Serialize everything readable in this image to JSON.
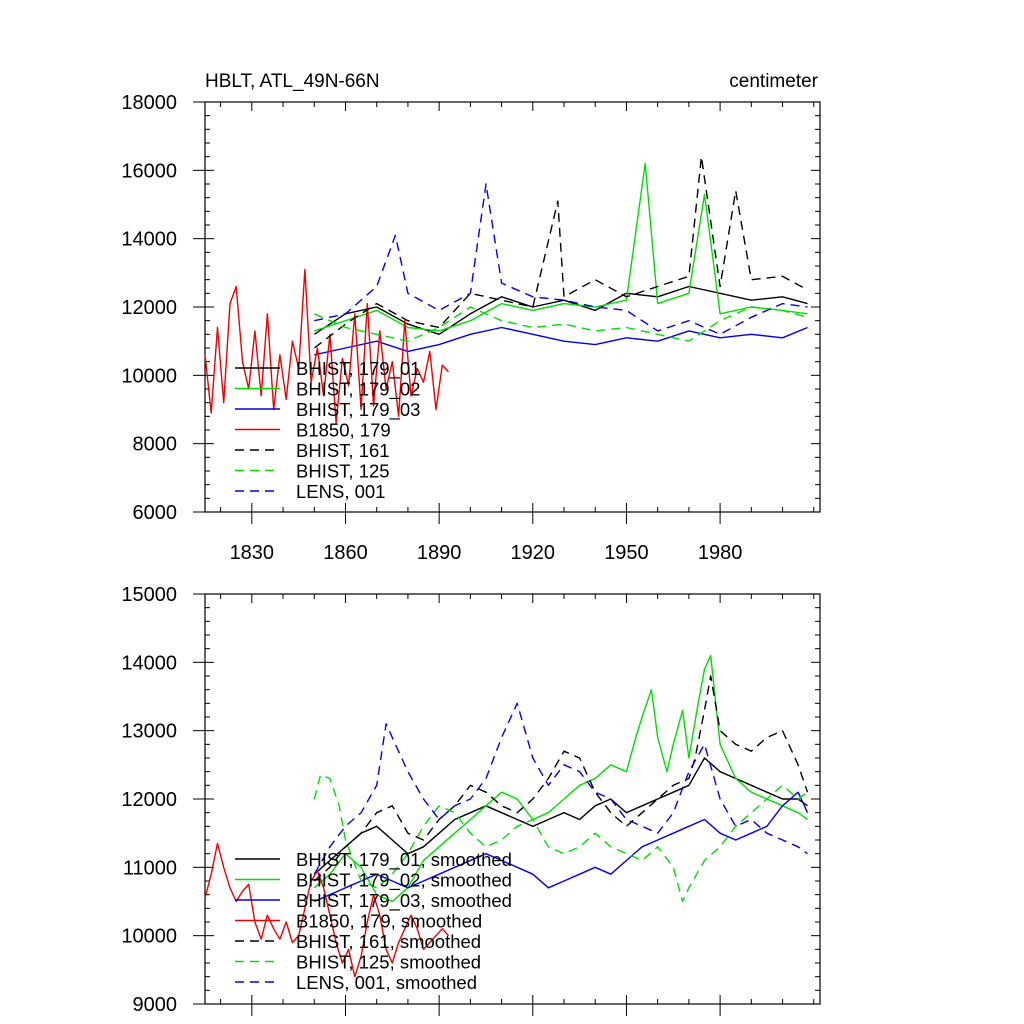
{
  "chart_data": [
    {
      "type": "line",
      "title": "HBLT, ATL_49N-66N",
      "units": "centimeter",
      "xlabel": "",
      "ylabel": "",
      "xlim": [
        1815,
        2012
      ],
      "ylim": [
        6000,
        18000
      ],
      "xticks": [
        1830,
        1860,
        1890,
        1920,
        1950,
        1980
      ],
      "xtick_labels": [
        "1830",
        "1860",
        "1890",
        "1920",
        "1950",
        "1980"
      ],
      "yticks": [
        6000,
        8000,
        10000,
        12000,
        14000,
        16000,
        18000
      ],
      "ytick_labels": [
        "6000",
        "8000",
        "10000",
        "12000",
        "14000",
        "16000",
        "18000"
      ],
      "legend_position": "lower-left",
      "series": [
        {
          "name": "BHIST, 179_01",
          "color": "#000000",
          "dash": "solid",
          "x": [
            1850,
            1860,
            1870,
            1880,
            1890,
            1900,
            1910,
            1920,
            1930,
            1940,
            1950,
            1960,
            1970,
            1980,
            1990,
            2000,
            2008
          ],
          "y": [
            11200,
            11800,
            12000,
            11500,
            11200,
            11800,
            12300,
            12000,
            12200,
            11900,
            12400,
            12300,
            12600,
            12400,
            12200,
            12300,
            12100
          ]
        },
        {
          "name": "BHIST, 179_02",
          "color": "#00dd00",
          "dash": "solid",
          "x": [
            1850,
            1860,
            1870,
            1880,
            1890,
            1900,
            1910,
            1920,
            1930,
            1940,
            1950,
            1956,
            1960,
            1970,
            1975,
            1980,
            1990,
            2000,
            2008
          ],
          "y": [
            11300,
            11600,
            11900,
            11400,
            11300,
            11600,
            12100,
            11900,
            12100,
            12000,
            12200,
            16200,
            12100,
            12400,
            15300,
            11800,
            12000,
            11900,
            11800
          ]
        },
        {
          "name": "BHIST, 179_03",
          "color": "#0000ee",
          "dash": "solid",
          "x": [
            1850,
            1860,
            1870,
            1880,
            1890,
            1900,
            1910,
            1920,
            1930,
            1940,
            1950,
            1960,
            1970,
            1980,
            1990,
            2000,
            2008
          ],
          "y": [
            10600,
            10800,
            11000,
            10700,
            10900,
            11200,
            11400,
            11200,
            11000,
            10900,
            11100,
            11000,
            11300,
            11100,
            11200,
            11100,
            11400
          ]
        },
        {
          "name": "B1850, 179",
          "color": "#ee0000",
          "dash": "solid",
          "x": [
            1815,
            1817,
            1819,
            1821,
            1823,
            1825,
            1827,
            1829,
            1831,
            1833,
            1835,
            1837,
            1839,
            1841,
            1843,
            1845,
            1847,
            1849,
            1851,
            1853,
            1855,
            1857,
            1859,
            1861,
            1863,
            1865,
            1867,
            1869,
            1871,
            1873,
            1875,
            1877,
            1879,
            1881,
            1883,
            1885,
            1887,
            1889,
            1891,
            1893
          ],
          "y": [
            10600,
            8900,
            11400,
            9200,
            12100,
            12600,
            10400,
            9600,
            11300,
            9400,
            11800,
            9000,
            10600,
            9300,
            11000,
            10200,
            13100,
            9800,
            10800,
            9400,
            11200,
            8600,
            10500,
            9700,
            11800,
            9000,
            12100,
            9100,
            11300,
            9600,
            10400,
            8800,
            11600,
            9400,
            10200,
            9800,
            10700,
            9000,
            10300,
            10100
          ]
        },
        {
          "name": "BHIST, 161",
          "color": "#000000",
          "dash": "dashed",
          "x": [
            1850,
            1860,
            1870,
            1880,
            1890,
            1900,
            1910,
            1920,
            1928,
            1930,
            1940,
            1950,
            1960,
            1970,
            1974,
            1980,
            1985,
            1990,
            2000,
            2008
          ],
          "y": [
            10800,
            11500,
            12100,
            11600,
            11400,
            12400,
            12200,
            12000,
            15100,
            12300,
            12800,
            12300,
            12600,
            12900,
            16400,
            12600,
            15400,
            12800,
            12900,
            12500
          ]
        },
        {
          "name": "BHIST, 125",
          "color": "#00dd00",
          "dash": "dashed",
          "x": [
            1850,
            1860,
            1870,
            1880,
            1890,
            1900,
            1910,
            1920,
            1930,
            1940,
            1950,
            1960,
            1970,
            1980,
            1990,
            2000,
            2008
          ],
          "y": [
            11800,
            11400,
            11200,
            11000,
            11400,
            12000,
            11600,
            11400,
            11500,
            11300,
            11400,
            11200,
            11000,
            11600,
            12000,
            11900,
            11700
          ]
        },
        {
          "name": "LENS, 001",
          "color": "#0000ee",
          "dash": "dashed",
          "x": [
            1850,
            1860,
            1870,
            1876,
            1880,
            1890,
            1900,
            1905,
            1910,
            1920,
            1930,
            1940,
            1950,
            1960,
            1970,
            1980,
            1990,
            2000,
            2008
          ],
          "y": [
            11600,
            11800,
            12600,
            14100,
            12400,
            11900,
            12400,
            15600,
            12700,
            12300,
            12200,
            12000,
            11900,
            11300,
            11600,
            11200,
            11700,
            12100,
            12000
          ]
        }
      ]
    },
    {
      "type": "line",
      "title": "",
      "units": "",
      "xlabel": "",
      "ylabel": "",
      "xlim": [
        1815,
        2012
      ],
      "ylim": [
        9000,
        15000
      ],
      "xticks": [
        1830,
        1860,
        1890,
        1920,
        1950,
        1980
      ],
      "xtick_labels": [],
      "yticks": [
        9000,
        10000,
        11000,
        12000,
        13000,
        14000,
        15000
      ],
      "ytick_labels": [
        "9000",
        "10000",
        "11000",
        "12000",
        "13000",
        "14000",
        "15000"
      ],
      "legend_position": "lower-left",
      "series": [
        {
          "name": "BHIST, 179_01, smoothed",
          "color": "#000000",
          "dash": "solid",
          "x": [
            1850,
            1855,
            1860,
            1865,
            1870,
            1875,
            1880,
            1885,
            1890,
            1895,
            1900,
            1905,
            1910,
            1915,
            1920,
            1925,
            1930,
            1935,
            1940,
            1945,
            1950,
            1955,
            1960,
            1965,
            1970,
            1975,
            1980,
            1985,
            1990,
            1995,
            2000,
            2005,
            2008
          ],
          "y": [
            10900,
            11100,
            11300,
            11500,
            11600,
            11400,
            11200,
            11300,
            11500,
            11700,
            11800,
            11900,
            11800,
            11700,
            11600,
            11700,
            11800,
            11700,
            11900,
            12000,
            11800,
            11900,
            12000,
            12100,
            12200,
            12600,
            12400,
            12300,
            12200,
            12100,
            12000,
            12000,
            11900
          ]
        },
        {
          "name": "BHIST, 179_02, smoothed",
          "color": "#00dd00",
          "dash": "solid",
          "x": [
            1850,
            1855,
            1860,
            1865,
            1870,
            1875,
            1880,
            1885,
            1890,
            1895,
            1900,
            1905,
            1910,
            1915,
            1920,
            1925,
            1930,
            1935,
            1940,
            1945,
            1950,
            1953,
            1955,
            1958,
            1960,
            1963,
            1965,
            1968,
            1970,
            1973,
            1975,
            1977,
            1980,
            1985,
            1990,
            1995,
            2000,
            2005,
            2008
          ],
          "y": [
            10700,
            10900,
            11200,
            11000,
            10600,
            10500,
            10700,
            11100,
            11300,
            11500,
            11700,
            11900,
            12100,
            12000,
            11700,
            11800,
            12000,
            12200,
            12300,
            12500,
            12400,
            12900,
            13200,
            13600,
            12900,
            12400,
            12800,
            13300,
            12600,
            13400,
            13900,
            14100,
            12800,
            12300,
            12100,
            12000,
            11900,
            11800,
            11700
          ]
        },
        {
          "name": "BHIST, 179_03, smoothed",
          "color": "#0000ee",
          "dash": "solid",
          "x": [
            1850,
            1855,
            1860,
            1865,
            1870,
            1875,
            1880,
            1885,
            1890,
            1895,
            1900,
            1905,
            1910,
            1915,
            1920,
            1925,
            1930,
            1935,
            1940,
            1945,
            1950,
            1955,
            1960,
            1965,
            1970,
            1975,
            1980,
            1985,
            1990,
            1995,
            2000,
            2005,
            2008
          ],
          "y": [
            10500,
            10600,
            10700,
            10800,
            10900,
            10800,
            10700,
            10800,
            10900,
            11000,
            11100,
            11200,
            11100,
            11000,
            10900,
            10700,
            10800,
            10900,
            11000,
            10900,
            11100,
            11300,
            11400,
            11500,
            11600,
            11700,
            11500,
            11400,
            11500,
            11600,
            11900,
            12100,
            11800
          ]
        },
        {
          "name": "B1850, 179, smoothed",
          "color": "#ee0000",
          "dash": "solid",
          "x": [
            1815,
            1817,
            1819,
            1821,
            1823,
            1825,
            1827,
            1829,
            1831,
            1833,
            1835,
            1837,
            1839,
            1841,
            1843,
            1845,
            1847,
            1849,
            1851,
            1853,
            1855,
            1857,
            1859,
            1861,
            1863,
            1865,
            1867,
            1869,
            1871,
            1873,
            1875,
            1877,
            1879,
            1881,
            1883,
            1885,
            1887,
            1889,
            1891,
            1893
          ],
          "y": [
            10550,
            10900,
            11350,
            11000,
            10700,
            10500,
            10650,
            10750,
            10200,
            9950,
            10300,
            10100,
            9950,
            10200,
            9900,
            10000,
            10400,
            10800,
            10950,
            10700,
            10300,
            9900,
            9600,
            9800,
            9400,
            9700,
            10200,
            10600,
            10300,
            9800,
            9600,
            9900,
            10100,
            10300,
            10100,
            9800,
            9900,
            10000,
            10100,
            10000
          ]
        },
        {
          "name": "BHIST, 161, smoothed",
          "color": "#000000",
          "dash": "dashed",
          "x": [
            1850,
            1855,
            1860,
            1865,
            1870,
            1875,
            1880,
            1885,
            1890,
            1895,
            1900,
            1905,
            1910,
            1915,
            1920,
            1925,
            1930,
            1935,
            1940,
            1945,
            1950,
            1955,
            1960,
            1965,
            1970,
            1972,
            1975,
            1977,
            1980,
            1985,
            1990,
            1995,
            2000,
            2005,
            2008
          ],
          "y": [
            10800,
            11000,
            11300,
            11500,
            11800,
            11900,
            11500,
            11400,
            11700,
            11900,
            12200,
            12100,
            11900,
            11800,
            12000,
            12300,
            12700,
            12600,
            12100,
            11800,
            11600,
            11800,
            12000,
            12200,
            12300,
            12600,
            13300,
            13800,
            13000,
            12800,
            12700,
            12900,
            13000,
            12500,
            12100
          ]
        },
        {
          "name": "BHIST, 125, smoothed",
          "color": "#00dd00",
          "dash": "dashed",
          "x": [
            1850,
            1852,
            1855,
            1858,
            1860,
            1865,
            1870,
            1875,
            1880,
            1885,
            1890,
            1895,
            1900,
            1905,
            1910,
            1915,
            1920,
            1925,
            1930,
            1935,
            1940,
            1945,
            1950,
            1955,
            1960,
            1965,
            1968,
            1970,
            1975,
            1980,
            1985,
            1990,
            1995,
            2000,
            2005,
            2008
          ],
          "y": [
            12000,
            12350,
            12300,
            11900,
            11400,
            10800,
            10700,
            10900,
            11200,
            11600,
            11900,
            11800,
            11500,
            11300,
            11400,
            11600,
            11700,
            11300,
            11200,
            11300,
            11500,
            11300,
            11200,
            11100,
            11300,
            11000,
            10500,
            10700,
            11100,
            11300,
            11600,
            11800,
            12000,
            12200,
            12000,
            12100
          ]
        },
        {
          "name": "LENS, 001, smoothed",
          "color": "#0000ee",
          "dash": "dashed",
          "x": [
            1850,
            1855,
            1860,
            1865,
            1870,
            1873,
            1875,
            1880,
            1885,
            1890,
            1895,
            1900,
            1905,
            1910,
            1915,
            1920,
            1925,
            1930,
            1935,
            1940,
            1945,
            1950,
            1955,
            1960,
            1965,
            1970,
            1975,
            1980,
            1985,
            1990,
            1995,
            2000,
            2005,
            2008
          ],
          "y": [
            10900,
            11300,
            11600,
            11800,
            12200,
            13100,
            12900,
            12400,
            12000,
            11700,
            11900,
            12000,
            12300,
            12900,
            13400,
            12600,
            12200,
            12500,
            12400,
            12100,
            12000,
            11700,
            11600,
            11500,
            11800,
            12400,
            12800,
            12000,
            11600,
            11700,
            11500,
            11400,
            11300,
            11200
          ]
        }
      ]
    }
  ]
}
